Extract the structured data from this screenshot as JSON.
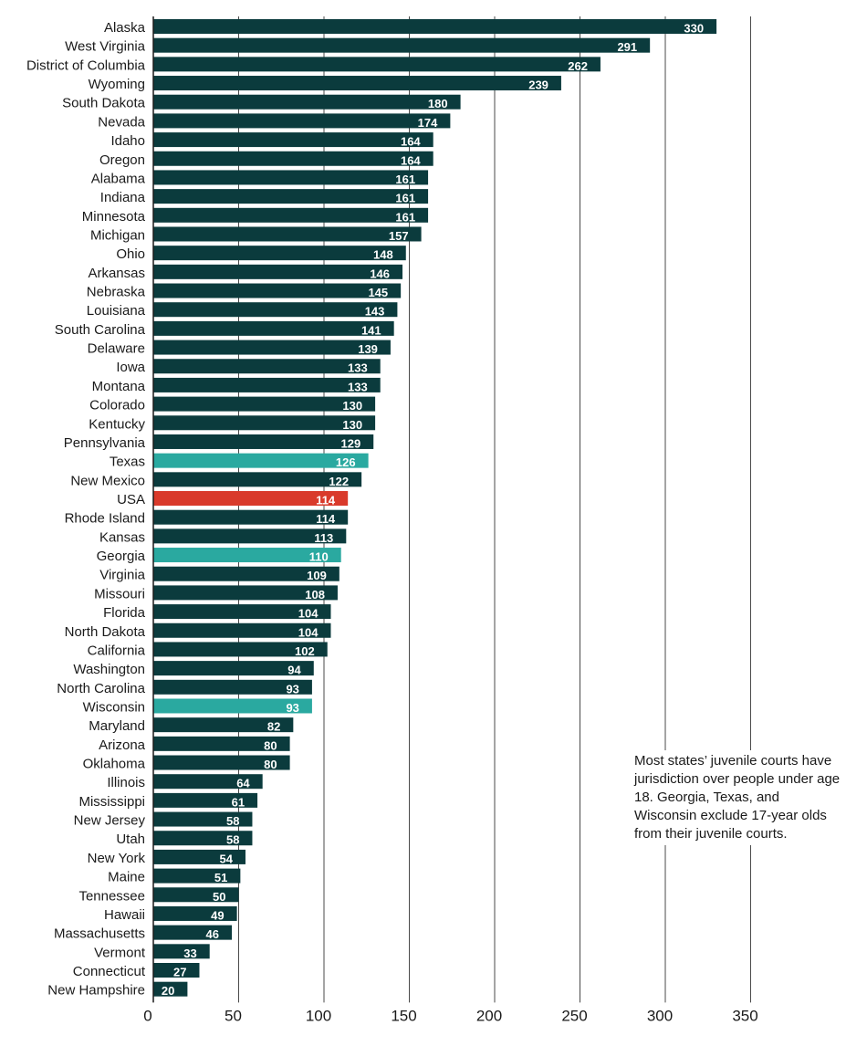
{
  "chart_data": {
    "type": "bar",
    "orientation": "horizontal",
    "title": "",
    "xlabel": "",
    "ylabel": "",
    "xlim": [
      0,
      350
    ],
    "xticks": [
      0,
      50,
      100,
      150,
      200,
      250,
      300,
      350
    ],
    "grid": true,
    "colors": {
      "default": "#0b3b3d",
      "highlight": "#2aa9a0",
      "usa": "#d93a2b"
    },
    "bars": [
      {
        "label": "Alaska",
        "value": 330,
        "highlight": "default"
      },
      {
        "label": "West Virginia",
        "value": 291,
        "highlight": "default"
      },
      {
        "label": "District of Columbia",
        "value": 262,
        "highlight": "default"
      },
      {
        "label": "Wyoming",
        "value": 239,
        "highlight": "default"
      },
      {
        "label": "South Dakota",
        "value": 180,
        "highlight": "default"
      },
      {
        "label": "Nevada",
        "value": 174,
        "highlight": "default"
      },
      {
        "label": "Idaho",
        "value": 164,
        "highlight": "default"
      },
      {
        "label": "Oregon",
        "value": 164,
        "highlight": "default"
      },
      {
        "label": "Alabama",
        "value": 161,
        "highlight": "default"
      },
      {
        "label": "Indiana",
        "value": 161,
        "highlight": "default"
      },
      {
        "label": "Minnesota",
        "value": 161,
        "highlight": "default"
      },
      {
        "label": "Michigan",
        "value": 157,
        "highlight": "default"
      },
      {
        "label": "Ohio",
        "value": 148,
        "highlight": "default"
      },
      {
        "label": "Arkansas",
        "value": 146,
        "highlight": "default"
      },
      {
        "label": "Nebraska",
        "value": 145,
        "highlight": "default"
      },
      {
        "label": "Louisiana",
        "value": 143,
        "highlight": "default"
      },
      {
        "label": "South Carolina",
        "value": 141,
        "highlight": "default"
      },
      {
        "label": "Delaware",
        "value": 139,
        "highlight": "default"
      },
      {
        "label": "Iowa",
        "value": 133,
        "highlight": "default"
      },
      {
        "label": "Montana",
        "value": 133,
        "highlight": "default"
      },
      {
        "label": "Colorado",
        "value": 130,
        "highlight": "default"
      },
      {
        "label": "Kentucky",
        "value": 130,
        "highlight": "default"
      },
      {
        "label": "Pennsylvania",
        "value": 129,
        "highlight": "default"
      },
      {
        "label": "Texas",
        "value": 126,
        "highlight": "highlight"
      },
      {
        "label": "New Mexico",
        "value": 122,
        "highlight": "default"
      },
      {
        "label": "USA",
        "value": 114,
        "highlight": "usa"
      },
      {
        "label": "Rhode Island",
        "value": 114,
        "highlight": "default"
      },
      {
        "label": "Kansas",
        "value": 113,
        "highlight": "default"
      },
      {
        "label": "Georgia",
        "value": 110,
        "highlight": "highlight"
      },
      {
        "label": "Virginia",
        "value": 109,
        "highlight": "default"
      },
      {
        "label": "Missouri",
        "value": 108,
        "highlight": "default"
      },
      {
        "label": "Florida",
        "value": 104,
        "highlight": "default"
      },
      {
        "label": "North Dakota",
        "value": 104,
        "highlight": "default"
      },
      {
        "label": "California",
        "value": 102,
        "highlight": "default"
      },
      {
        "label": "Washington",
        "value": 94,
        "highlight": "default"
      },
      {
        "label": "North Carolina",
        "value": 93,
        "highlight": "default"
      },
      {
        "label": "Wisconsin",
        "value": 93,
        "highlight": "highlight"
      },
      {
        "label": "Maryland",
        "value": 82,
        "highlight": "default"
      },
      {
        "label": "Arizona",
        "value": 80,
        "highlight": "default"
      },
      {
        "label": "Oklahoma",
        "value": 80,
        "highlight": "default"
      },
      {
        "label": "Illinois",
        "value": 64,
        "highlight": "default"
      },
      {
        "label": "Mississippi",
        "value": 61,
        "highlight": "default"
      },
      {
        "label": "New Jersey",
        "value": 58,
        "highlight": "default"
      },
      {
        "label": "Utah",
        "value": 58,
        "highlight": "default"
      },
      {
        "label": "New York",
        "value": 54,
        "highlight": "default"
      },
      {
        "label": "Maine",
        "value": 51,
        "highlight": "default"
      },
      {
        "label": "Tennessee",
        "value": 50,
        "highlight": "default"
      },
      {
        "label": "Hawaii",
        "value": 49,
        "highlight": "default"
      },
      {
        "label": "Massachusetts",
        "value": 46,
        "highlight": "default"
      },
      {
        "label": "Vermont",
        "value": 33,
        "highlight": "default"
      },
      {
        "label": "Connecticut",
        "value": 27,
        "highlight": "default"
      },
      {
        "label": "New Hampshire",
        "value": 20,
        "highlight": "default"
      }
    ],
    "annotation": "Most states’ juvenile courts have jurisdiction over people under age 18. Georgia, Texas, and Wisconsin exclude 17-year olds from their juvenile courts."
  }
}
